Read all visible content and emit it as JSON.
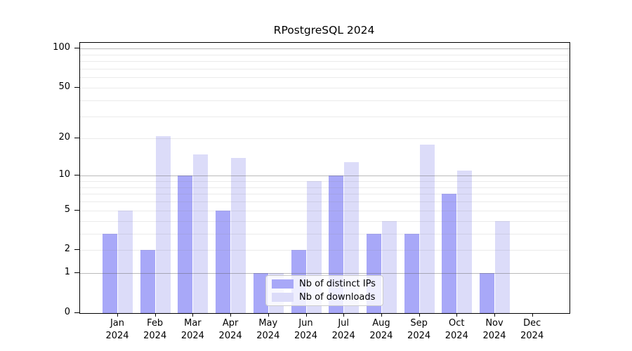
{
  "title": "RPostgreSQL 2024",
  "chart_data": {
    "type": "bar",
    "title": "RPostgreSQL 2024",
    "categories": [
      "Jan",
      "Feb",
      "Mar",
      "Apr",
      "May",
      "Jun",
      "Jul",
      "Aug",
      "Sep",
      "Oct",
      "Nov",
      "Dec"
    ],
    "category_year_line": "2024",
    "series": [
      {
        "name": "Nb of distinct IPs",
        "color": "#a8a8f8",
        "values": [
          3,
          2,
          10,
          5,
          1,
          2,
          10,
          3,
          3,
          7,
          1,
          0
        ]
      },
      {
        "name": "Nb of downloads",
        "color": "#dcdcf9",
        "values": [
          5,
          21,
          15,
          14,
          1,
          9,
          13,
          4,
          18,
          11,
          4,
          0
        ]
      }
    ],
    "xlabel": "",
    "ylabel": "",
    "yscale": "log1p",
    "ylim": [
      0,
      110
    ],
    "ytick_values": [
      0,
      1,
      2,
      5,
      10,
      20,
      50,
      100
    ],
    "ytick_labels": [
      "0",
      "1",
      "2",
      "5",
      "10",
      "20",
      "50",
      "100"
    ],
    "gridlines_major": [
      1,
      10,
      100
    ],
    "gridlines_minor": [
      2,
      3,
      4,
      5,
      6,
      7,
      8,
      9,
      20,
      30,
      40,
      50,
      60,
      70,
      80,
      90
    ],
    "grid": true,
    "legend_position": "lower-center-inside"
  },
  "legend": {
    "items": [
      {
        "label": "Nb of distinct IPs",
        "color": "#a8a8f8"
      },
      {
        "label": "Nb of downloads",
        "color": "#dcdcf9"
      }
    ]
  },
  "colors": {
    "background": "#ffffff",
    "spine": "#000000",
    "bar_distinct_ips": "#a8a8f8",
    "bar_downloads": "#dcdcf9",
    "gridline_major": "#b4b4b4",
    "gridline_minor": "#e8e8e8",
    "legend_border": "#cccccc"
  }
}
